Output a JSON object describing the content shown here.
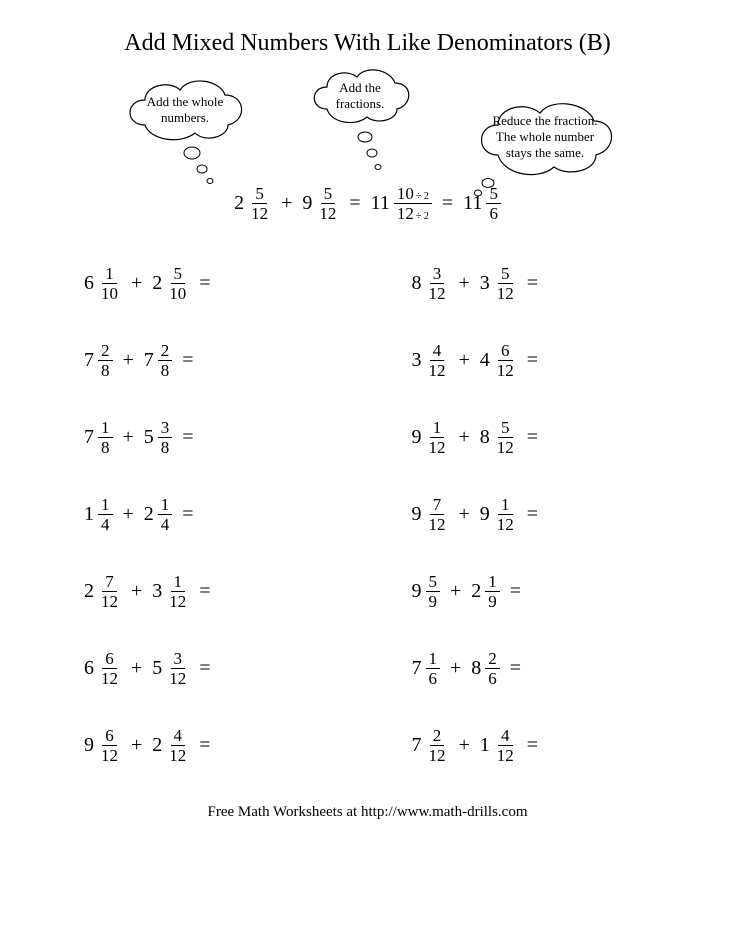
{
  "title": "Add Mixed Numbers With Like Denominators (B)",
  "hints": {
    "left": "Add the whole numbers.",
    "mid": "Add the fractions.",
    "right": "Reduce the fraction. The whole number stays the same."
  },
  "example": {
    "a": {
      "w": "2",
      "n": "5",
      "d": "12"
    },
    "b": {
      "w": "9",
      "n": "5",
      "d": "12"
    },
    "sum": {
      "w": "11",
      "n": "10",
      "d": "12"
    },
    "div": "÷ 2",
    "reduced": {
      "w": "11",
      "n": "5",
      "d": "6"
    }
  },
  "problems": [
    {
      "a": {
        "w": "6",
        "n": "1",
        "d": "10"
      },
      "b": {
        "w": "2",
        "n": "5",
        "d": "10"
      }
    },
    {
      "a": {
        "w": "8",
        "n": "3",
        "d": "12"
      },
      "b": {
        "w": "3",
        "n": "5",
        "d": "12"
      }
    },
    {
      "a": {
        "w": "7",
        "n": "2",
        "d": "8"
      },
      "b": {
        "w": "7",
        "n": "2",
        "d": "8"
      }
    },
    {
      "a": {
        "w": "3",
        "n": "4",
        "d": "12"
      },
      "b": {
        "w": "4",
        "n": "6",
        "d": "12"
      }
    },
    {
      "a": {
        "w": "7",
        "n": "1",
        "d": "8"
      },
      "b": {
        "w": "5",
        "n": "3",
        "d": "8"
      }
    },
    {
      "a": {
        "w": "9",
        "n": "1",
        "d": "12"
      },
      "b": {
        "w": "8",
        "n": "5",
        "d": "12"
      }
    },
    {
      "a": {
        "w": "1",
        "n": "1",
        "d": "4"
      },
      "b": {
        "w": "2",
        "n": "1",
        "d": "4"
      }
    },
    {
      "a": {
        "w": "9",
        "n": "7",
        "d": "12"
      },
      "b": {
        "w": "9",
        "n": "1",
        "d": "12"
      }
    },
    {
      "a": {
        "w": "2",
        "n": "7",
        "d": "12"
      },
      "b": {
        "w": "3",
        "n": "1",
        "d": "12"
      }
    },
    {
      "a": {
        "w": "9",
        "n": "5",
        "d": "9"
      },
      "b": {
        "w": "2",
        "n": "1",
        "d": "9"
      }
    },
    {
      "a": {
        "w": "6",
        "n": "6",
        "d": "12"
      },
      "b": {
        "w": "5",
        "n": "3",
        "d": "12"
      }
    },
    {
      "a": {
        "w": "7",
        "n": "1",
        "d": "6"
      },
      "b": {
        "w": "8",
        "n": "2",
        "d": "6"
      }
    },
    {
      "a": {
        "w": "9",
        "n": "6",
        "d": "12"
      },
      "b": {
        "w": "2",
        "n": "4",
        "d": "12"
      }
    },
    {
      "a": {
        "w": "7",
        "n": "2",
        "d": "12"
      },
      "b": {
        "w": "1",
        "n": "4",
        "d": "12"
      }
    }
  ],
  "footer": "Free Math Worksheets at http://www.math-drills.com",
  "style": {
    "page_bg": "#ffffff",
    "text_color": "#000000",
    "title_fontsize": 24,
    "body_fontsize": 20,
    "frac_fontsize": 17,
    "hint_fontsize": 13,
    "footer_fontsize": 15,
    "font_family": "Times New Roman"
  }
}
